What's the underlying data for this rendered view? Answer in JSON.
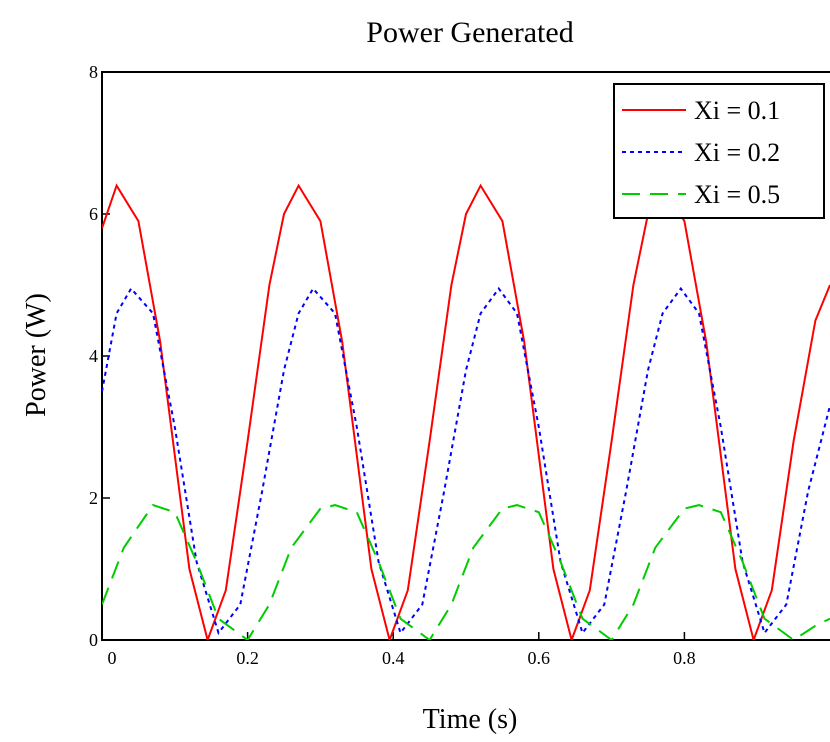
{
  "chart_data": {
    "type": "line",
    "title": "Power Generated",
    "xlabel": "Time (s)",
    "ylabel": "Power (W)",
    "xlim": [
      0,
      1
    ],
    "ylim": [
      0,
      8
    ],
    "xticks": [
      0,
      0.2,
      0.4,
      0.6,
      0.8
    ],
    "xtick_labels": [
      "0",
      "0.2",
      "0.4",
      "0.6",
      "0.8"
    ],
    "yticks": [
      0,
      2,
      4,
      6,
      8
    ],
    "ytick_labels": [
      "0",
      "2",
      "4",
      "6",
      "8"
    ],
    "grid": false,
    "legend_position": "top-right",
    "series": [
      {
        "name": "Xi = 0.1",
        "color": "#ff0000",
        "style": "solid",
        "x": [
          0,
          0.02,
          0.05,
          0.08,
          0.1,
          0.12,
          0.145,
          0.17,
          0.2,
          0.23,
          0.25,
          0.27,
          0.3,
          0.33,
          0.35,
          0.37,
          0.395,
          0.42,
          0.45,
          0.48,
          0.5,
          0.52,
          0.55,
          0.58,
          0.6,
          0.62,
          0.645,
          0.67,
          0.7,
          0.73,
          0.75,
          0.77,
          0.8,
          0.83,
          0.85,
          0.87,
          0.895,
          0.92,
          0.95,
          0.98,
          1.0
        ],
        "y": [
          5.8,
          6.4,
          5.9,
          4.2,
          2.6,
          1.0,
          0.0,
          0.7,
          2.8,
          5.0,
          6.0,
          6.4,
          5.9,
          4.2,
          2.6,
          1.0,
          0.0,
          0.7,
          2.8,
          5.0,
          6.0,
          6.4,
          5.9,
          4.2,
          2.6,
          1.0,
          0.0,
          0.7,
          2.8,
          5.0,
          6.0,
          6.4,
          5.9,
          4.2,
          2.6,
          1.0,
          0.0,
          0.7,
          2.8,
          4.5,
          5.0
        ]
      },
      {
        "name": "Xi = 0.2",
        "color": "#0000ff",
        "style": "dotted",
        "x": [
          0,
          0.02,
          0.04,
          0.07,
          0.1,
          0.13,
          0.16,
          0.19,
          0.22,
          0.25,
          0.27,
          0.29,
          0.32,
          0.35,
          0.38,
          0.41,
          0.44,
          0.47,
          0.5,
          0.52,
          0.545,
          0.57,
          0.6,
          0.63,
          0.66,
          0.69,
          0.72,
          0.75,
          0.77,
          0.795,
          0.82,
          0.85,
          0.88,
          0.91,
          0.94,
          0.97,
          1.0
        ],
        "y": [
          3.5,
          4.6,
          4.95,
          4.6,
          3.0,
          1.1,
          0.1,
          0.5,
          2.1,
          3.8,
          4.6,
          4.95,
          4.6,
          3.0,
          1.1,
          0.1,
          0.5,
          2.1,
          3.8,
          4.6,
          4.95,
          4.6,
          3.0,
          1.1,
          0.1,
          0.5,
          2.1,
          3.8,
          4.6,
          4.95,
          4.6,
          3.0,
          1.1,
          0.1,
          0.5,
          2.1,
          3.3
        ]
      },
      {
        "name": "Xi = 0.5",
        "color": "#00cc00",
        "style": "dashed",
        "x": [
          0,
          0.03,
          0.07,
          0.1,
          0.13,
          0.16,
          0.2,
          0.23,
          0.26,
          0.3,
          0.32,
          0.35,
          0.38,
          0.41,
          0.45,
          0.48,
          0.51,
          0.55,
          0.57,
          0.6,
          0.63,
          0.66,
          0.7,
          0.73,
          0.76,
          0.8,
          0.82,
          0.85,
          0.88,
          0.91,
          0.95,
          0.98,
          1.0
        ],
        "y": [
          0.5,
          1.3,
          1.9,
          1.8,
          1.1,
          0.3,
          0.0,
          0.5,
          1.3,
          1.85,
          1.9,
          1.8,
          1.1,
          0.3,
          0.0,
          0.5,
          1.3,
          1.85,
          1.9,
          1.8,
          1.1,
          0.3,
          0.0,
          0.5,
          1.3,
          1.85,
          1.9,
          1.8,
          1.1,
          0.3,
          0.0,
          0.2,
          0.3
        ]
      }
    ]
  }
}
